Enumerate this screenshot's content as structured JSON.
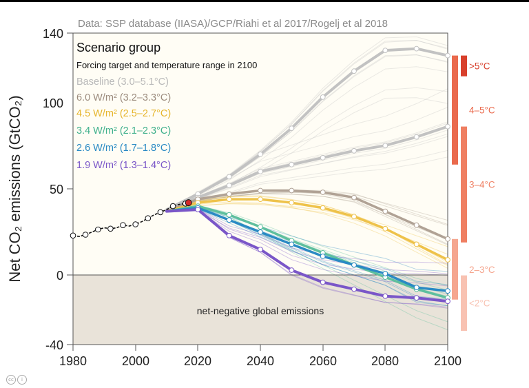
{
  "chart_data": {
    "type": "line",
    "source": "Data: SSP database (IIASA)/GCP/Riahi et al 2017/Rogelj et al 2018",
    "ylabel": "Net CO₂ emissions (GtCO₂)",
    "xlim": [
      1980,
      2100
    ],
    "ylim": [
      -40,
      140
    ],
    "x_ticks": [
      "1980",
      "2000",
      "2020",
      "2040",
      "2060",
      "2080",
      "2100"
    ],
    "y_ticks": [
      "140",
      "100",
      "50",
      "0",
      "-40"
    ],
    "legend_title": "Scenario group",
    "legend_subtitle": "Forcing target and temperature range in 2100",
    "shaded_region_label": "net-negative global emissions",
    "historical": {
      "x": [
        1980,
        1982,
        1984,
        1986,
        1988,
        1990,
        1992,
        1994,
        1996,
        1998,
        2000,
        2002,
        2004,
        2006,
        2008,
        2010,
        2012,
        2014,
        2016,
        2017
      ],
      "y": [
        23,
        22.5,
        23.5,
        25,
        26.5,
        27.5,
        27,
        27.5,
        29,
        28.5,
        29.5,
        31,
        33,
        35,
        36.5,
        38,
        40,
        41,
        41.5,
        42
      ]
    },
    "series": [
      {
        "name": "Baseline (3.0–5.1°C)",
        "color": "#c2c2c2",
        "paths": [
          {
            "x": [
              2010,
              2020,
              2030,
              2040,
              2050,
              2060,
              2070,
              2080,
              2090,
              2100
            ],
            "y": [
              38,
              47,
              57,
              70,
              85,
              103,
              118,
              130,
              131,
              127
            ]
          },
          {
            "x": [
              2010,
              2020,
              2030,
              2040,
              2050,
              2060,
              2070,
              2080,
              2090,
              2100
            ],
            "y": [
              37,
              45,
              52,
              60,
              64,
              68,
              72,
              75,
              80,
              86
            ]
          }
        ]
      },
      {
        "name": "6.0 W/m² (3.2–3.3°C)",
        "color": "#b0a295",
        "paths": [
          {
            "x": [
              2010,
              2020,
              2030,
              2040,
              2050,
              2060,
              2070,
              2080,
              2090,
              2100
            ],
            "y": [
              37,
              44,
              47,
              49,
              49,
              48,
              45,
              37,
              29,
              21
            ]
          }
        ]
      },
      {
        "name": "4.5 W/m² (2.5–2.7°C)",
        "color": "#eec24a",
        "paths": [
          {
            "x": [
              2010,
              2020,
              2030,
              2040,
              2050,
              2060,
              2070,
              2080,
              2090,
              2100
            ],
            "y": [
              37,
              42,
              44,
              44,
              42,
              39,
              34,
              27,
              18,
              9
            ]
          }
        ]
      },
      {
        "name": "3.4 W/m² (2.1–2.3°C)",
        "color": "#5ebf9e",
        "paths": [
          {
            "x": [
              2010,
              2020,
              2030,
              2040,
              2050,
              2060,
              2070,
              2080,
              2090,
              2100
            ],
            "y": [
              37,
              40,
              35,
              28,
              20,
              13,
              6,
              -1,
              -8,
              -13
            ]
          }
        ]
      },
      {
        "name": "2.6 W/m² (1.7–1.8°C)",
        "color": "#2a8ac4",
        "paths": [
          {
            "x": [
              2010,
              2020,
              2030,
              2040,
              2050,
              2060,
              2070,
              2080,
              2090,
              2100
            ],
            "y": [
              37,
              39,
              32,
              25,
              18,
              11,
              6,
              1,
              -7,
              -9
            ]
          }
        ]
      },
      {
        "name": "1.9 W/m² (1.3–1.4°C)",
        "color": "#7a56c8",
        "paths": [
          {
            "x": [
              2010,
              2020,
              2030,
              2040,
              2050,
              2060,
              2070,
              2080,
              2090,
              2100
            ],
            "y": [
              37,
              38,
              23,
              15,
              3,
              -4,
              -8,
              -12,
              -13,
              -15
            ]
          }
        ]
      }
    ],
    "temperature_ranges": [
      {
        "label": ">5°C",
        "color": "#d8402c",
        "ymin": 115,
        "ymax": 127
      },
      {
        "label": "4–5°C",
        "color": "#ea6a4d",
        "ymin": 64,
        "ymax": 127
      },
      {
        "label": "3–4°C",
        "color": "#ef7f62",
        "ymin": 19,
        "ymax": 86
      },
      {
        "label": "2–3°C",
        "color": "#f5a68f",
        "ymin": -14,
        "ymax": 21
      },
      {
        "label": "<2°C",
        "color": "#f8c2b2",
        "ymin": -32,
        "ymax": 0
      }
    ]
  }
}
